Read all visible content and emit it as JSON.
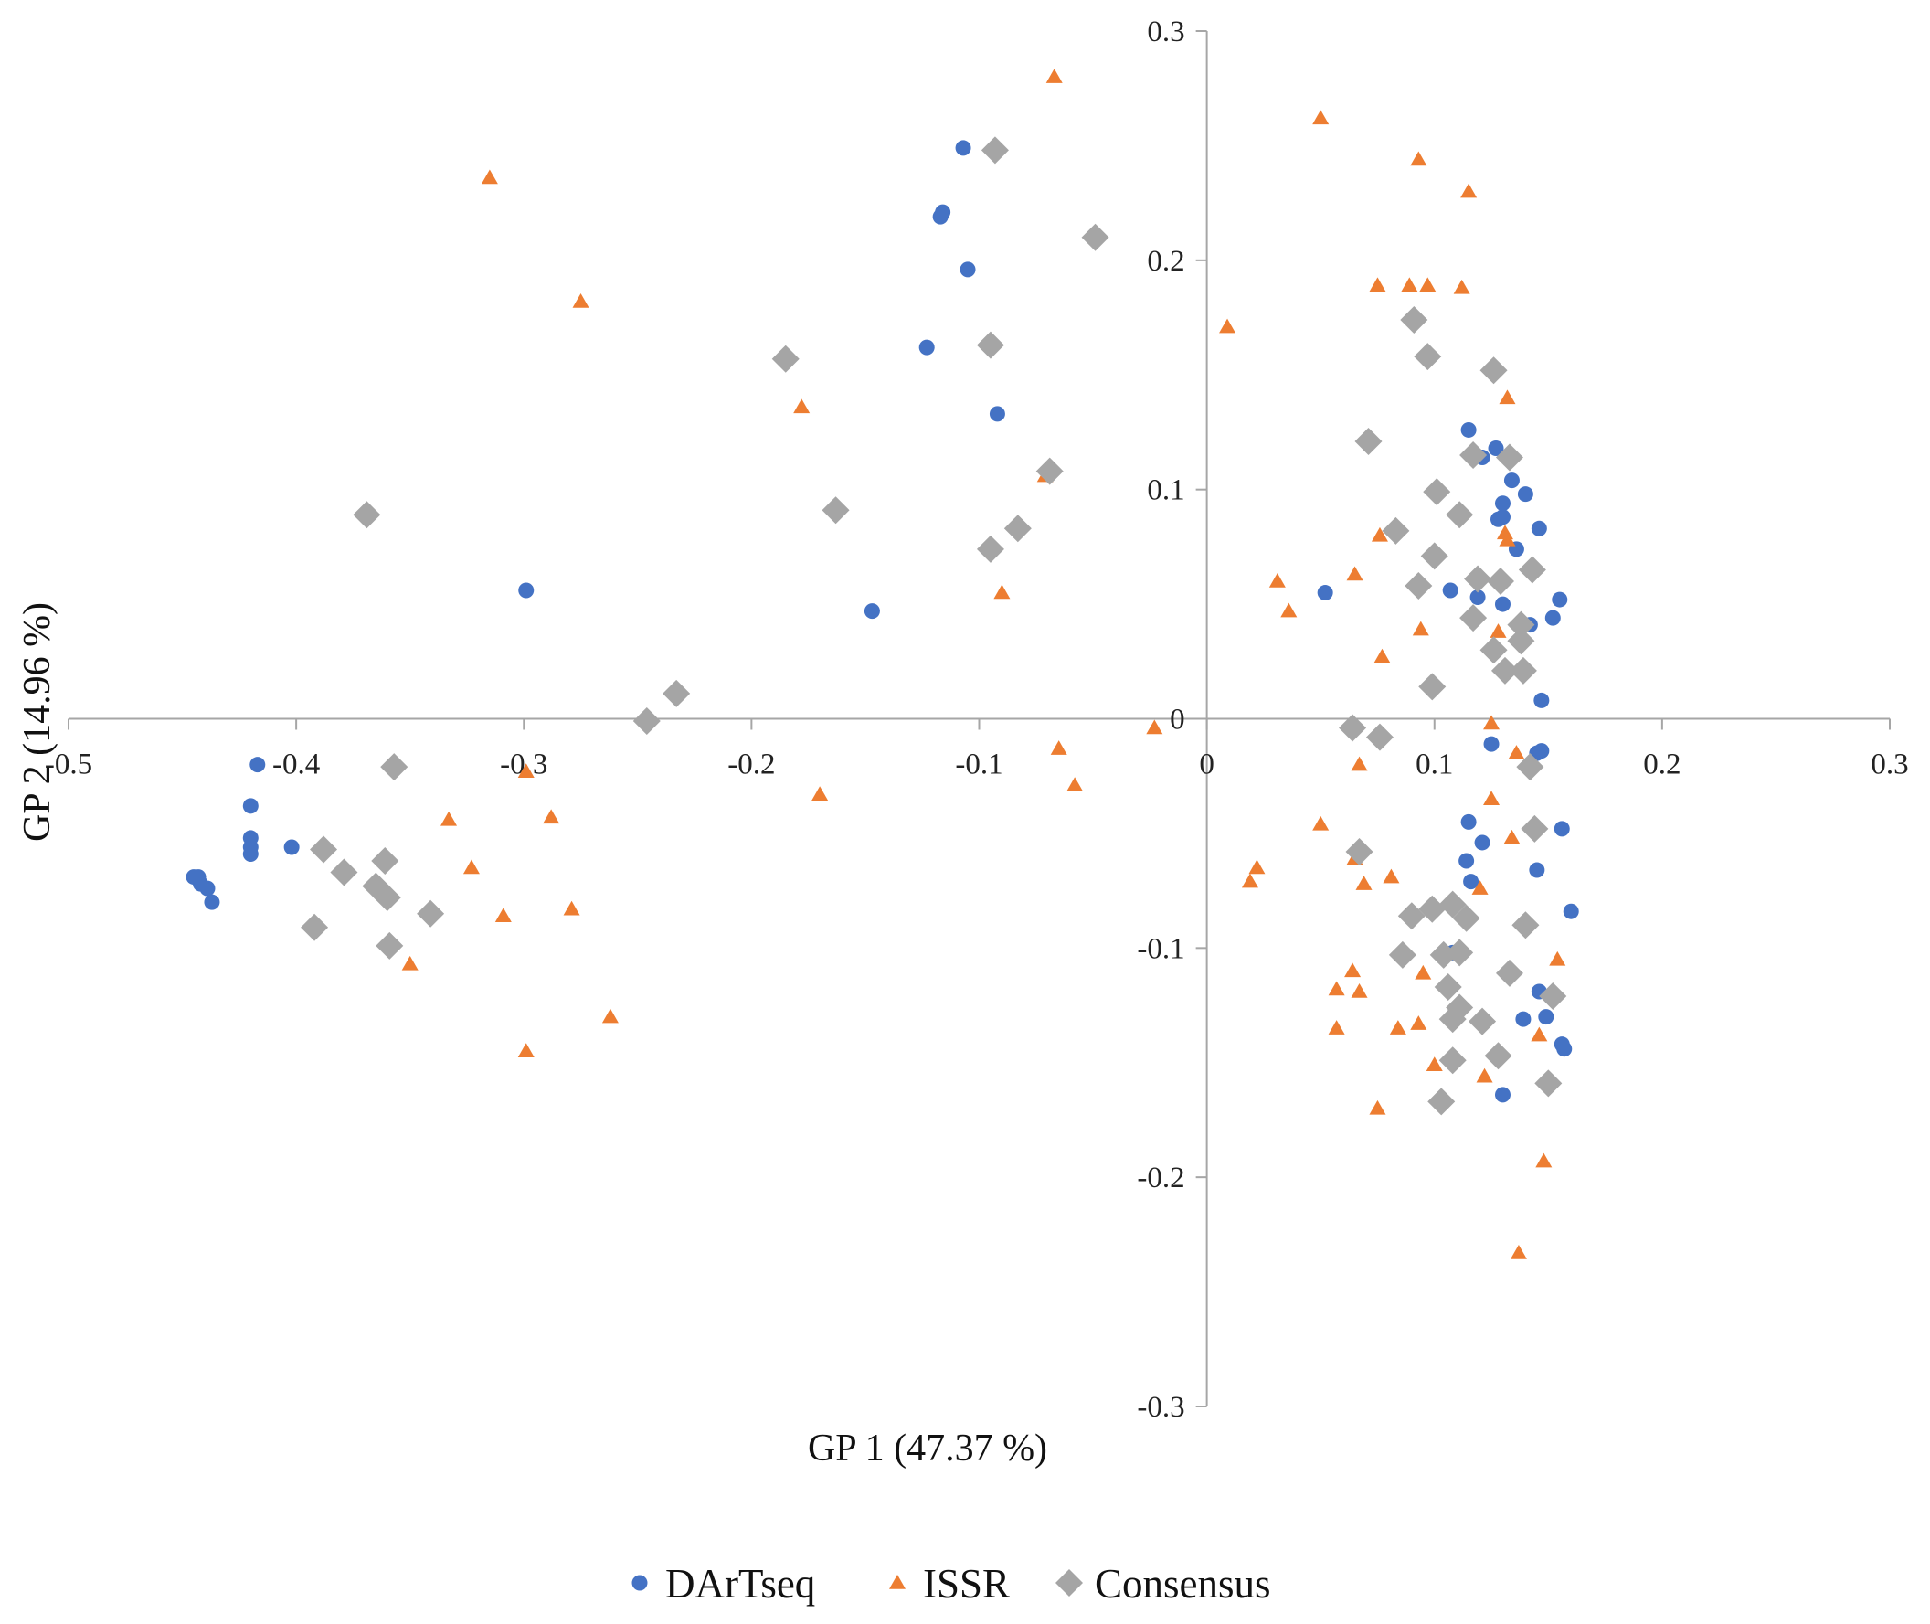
{
  "chart_data": {
    "type": "scatter",
    "xlabel": "GP 1 (47.37 %)",
    "ylabel": "GP 2 (14.96 %)",
    "xlim": [
      -0.5,
      0.3
    ],
    "ylim": [
      -0.3,
      0.3
    ],
    "x_ticks": [
      "-0.5",
      "-0.4",
      "-0.3",
      "-0.2",
      "-0.1",
      "0",
      "0.1",
      "0.2",
      "0.3"
    ],
    "y_ticks": [
      "0.3",
      "0.2",
      "0.1",
      "0",
      "-0.1",
      "-0.2",
      "-0.3"
    ],
    "legend_position": "bottom-center",
    "colors": {
      "DArTseq": "#4472c4",
      "ISSR": "#ed7d31",
      "Consensus": "#a5a5a5",
      "axis": "#a6a6a6"
    },
    "series": [
      {
        "name": "DArTseq",
        "marker": "circle",
        "points": [
          [
            -0.445,
            -0.069
          ],
          [
            -0.442,
            -0.072
          ],
          [
            -0.443,
            -0.069
          ],
          [
            -0.439,
            -0.074
          ],
          [
            -0.437,
            -0.08
          ],
          [
            -0.42,
            -0.059
          ],
          [
            -0.42,
            -0.056
          ],
          [
            -0.42,
            -0.052
          ],
          [
            -0.42,
            -0.038
          ],
          [
            -0.417,
            -0.02
          ],
          [
            -0.402,
            -0.056
          ],
          [
            -0.299,
            0.056
          ],
          [
            -0.147,
            0.047
          ],
          [
            -0.123,
            0.162
          ],
          [
            -0.117,
            0.219
          ],
          [
            -0.116,
            0.221
          ],
          [
            -0.107,
            0.249
          ],
          [
            -0.105,
            0.196
          ],
          [
            -0.092,
            0.133
          ],
          [
            0.052,
            0.055
          ],
          [
            0.107,
            0.056
          ],
          [
            0.119,
            0.053
          ],
          [
            0.115,
            0.126
          ],
          [
            0.121,
            0.114
          ],
          [
            0.127,
            0.118
          ],
          [
            0.128,
            0.087
          ],
          [
            0.13,
            0.088
          ],
          [
            0.13,
            0.094
          ],
          [
            0.13,
            0.05
          ],
          [
            0.134,
            0.104
          ],
          [
            0.136,
            0.074
          ],
          [
            0.14,
            0.098
          ],
          [
            0.142,
            0.041
          ],
          [
            0.146,
            0.083
          ],
          [
            0.152,
            0.044
          ],
          [
            0.155,
            0.052
          ],
          [
            0.145,
            -0.015
          ],
          [
            0.147,
            -0.014
          ],
          [
            0.147,
            0.008
          ],
          [
            0.125,
            -0.011
          ],
          [
            0.115,
            -0.045
          ],
          [
            0.121,
            -0.054
          ],
          [
            0.114,
            -0.062
          ],
          [
            0.116,
            -0.071
          ],
          [
            0.145,
            -0.066
          ],
          [
            0.156,
            -0.048
          ],
          [
            0.16,
            -0.084
          ],
          [
            0.14,
            -0.09
          ],
          [
            0.108,
            -0.102
          ],
          [
            0.146,
            -0.119
          ],
          [
            0.149,
            -0.13
          ],
          [
            0.139,
            -0.131
          ],
          [
            0.156,
            -0.142
          ],
          [
            0.157,
            -0.144
          ],
          [
            0.13,
            -0.164
          ]
        ]
      },
      {
        "name": "ISSR",
        "marker": "triangle",
        "points": [
          [
            -0.315,
            0.236
          ],
          [
            -0.275,
            0.182
          ],
          [
            -0.299,
            -0.023
          ],
          [
            -0.333,
            -0.044
          ],
          [
            -0.288,
            -0.043
          ],
          [
            -0.323,
            -0.065
          ],
          [
            -0.309,
            -0.086
          ],
          [
            -0.279,
            -0.083
          ],
          [
            -0.35,
            -0.107
          ],
          [
            -0.262,
            -0.13
          ],
          [
            -0.299,
            -0.145
          ],
          [
            -0.178,
            0.136
          ],
          [
            -0.17,
            -0.033
          ],
          [
            -0.067,
            0.28
          ],
          [
            -0.071,
            0.106
          ],
          [
            -0.09,
            0.055
          ],
          [
            -0.065,
            -0.013
          ],
          [
            -0.058,
            -0.029
          ],
          [
            -0.023,
            -0.004
          ],
          [
            0.009,
            0.171
          ],
          [
            0.05,
            0.262
          ],
          [
            0.093,
            0.244
          ],
          [
            0.115,
            0.23
          ],
          [
            0.075,
            0.189
          ],
          [
            0.089,
            0.189
          ],
          [
            0.097,
            0.189
          ],
          [
            0.112,
            0.188
          ],
          [
            0.132,
            0.14
          ],
          [
            0.031,
            0.06
          ],
          [
            0.036,
            0.047
          ],
          [
            0.065,
            0.063
          ],
          [
            0.076,
            0.08
          ],
          [
            0.077,
            0.027
          ],
          [
            0.094,
            0.039
          ],
          [
            0.128,
            0.038
          ],
          [
            0.131,
            0.081
          ],
          [
            0.132,
            0.078
          ],
          [
            0.125,
            -0.002
          ],
          [
            0.136,
            -0.015
          ],
          [
            0.067,
            -0.02
          ],
          [
            0.022,
            -0.065
          ],
          [
            0.019,
            -0.071
          ],
          [
            0.05,
            -0.046
          ],
          [
            0.065,
            -0.061
          ],
          [
            0.069,
            -0.072
          ],
          [
            0.081,
            -0.069
          ],
          [
            0.12,
            -0.074
          ],
          [
            0.125,
            -0.035
          ],
          [
            0.134,
            -0.052
          ],
          [
            0.064,
            -0.11
          ],
          [
            0.067,
            -0.119
          ],
          [
            0.057,
            -0.118
          ],
          [
            0.057,
            -0.135
          ],
          [
            0.075,
            -0.17
          ],
          [
            0.084,
            -0.135
          ],
          [
            0.093,
            -0.133
          ],
          [
            0.095,
            -0.111
          ],
          [
            0.1,
            -0.151
          ],
          [
            0.122,
            -0.156
          ],
          [
            0.146,
            -0.138
          ],
          [
            0.154,
            -0.105
          ],
          [
            0.148,
            -0.193
          ],
          [
            0.137,
            -0.233
          ]
        ]
      },
      {
        "name": "Consensus",
        "marker": "diamond",
        "points": [
          [
            -0.093,
            0.248
          ],
          [
            -0.049,
            0.21
          ],
          [
            -0.185,
            0.157
          ],
          [
            -0.095,
            0.163
          ],
          [
            -0.069,
            0.108
          ],
          [
            -0.163,
            0.091
          ],
          [
            -0.083,
            0.083
          ],
          [
            -0.095,
            0.074
          ],
          [
            -0.369,
            0.089
          ],
          [
            -0.233,
            0.011
          ],
          [
            -0.246,
            -0.001
          ],
          [
            -0.357,
            -0.021
          ],
          [
            -0.388,
            -0.057
          ],
          [
            -0.379,
            -0.067
          ],
          [
            -0.361,
            -0.062
          ],
          [
            -0.365,
            -0.073
          ],
          [
            -0.36,
            -0.078
          ],
          [
            -0.341,
            -0.085
          ],
          [
            -0.392,
            -0.091
          ],
          [
            -0.359,
            -0.099
          ],
          [
            0.091,
            0.174
          ],
          [
            0.097,
            0.158
          ],
          [
            0.126,
            0.152
          ],
          [
            0.071,
            0.121
          ],
          [
            0.117,
            0.115
          ],
          [
            0.133,
            0.114
          ],
          [
            0.101,
            0.099
          ],
          [
            0.111,
            0.089
          ],
          [
            0.083,
            0.082
          ],
          [
            0.1,
            0.071
          ],
          [
            0.143,
            0.065
          ],
          [
            0.093,
            0.058
          ],
          [
            0.119,
            0.061
          ],
          [
            0.129,
            0.06
          ],
          [
            0.117,
            0.044
          ],
          [
            0.138,
            0.041
          ],
          [
            0.138,
            0.034
          ],
          [
            0.126,
            0.03
          ],
          [
            0.131,
            0.021
          ],
          [
            0.139,
            0.021
          ],
          [
            0.099,
            0.014
          ],
          [
            0.064,
            -0.004
          ],
          [
            0.076,
            -0.008
          ],
          [
            0.142,
            -0.021
          ],
          [
            0.067,
            -0.058
          ],
          [
            0.144,
            -0.048
          ],
          [
            0.09,
            -0.086
          ],
          [
            0.099,
            -0.083
          ],
          [
            0.108,
            -0.081
          ],
          [
            0.114,
            -0.087
          ],
          [
            0.14,
            -0.09
          ],
          [
            0.086,
            -0.103
          ],
          [
            0.104,
            -0.103
          ],
          [
            0.111,
            -0.102
          ],
          [
            0.106,
            -0.117
          ],
          [
            0.133,
            -0.111
          ],
          [
            0.152,
            -0.121
          ],
          [
            0.108,
            -0.131
          ],
          [
            0.111,
            -0.126
          ],
          [
            0.121,
            -0.132
          ],
          [
            0.128,
            -0.147
          ],
          [
            0.108,
            -0.149
          ],
          [
            0.15,
            -0.159
          ],
          [
            0.103,
            -0.167
          ]
        ]
      }
    ]
  }
}
